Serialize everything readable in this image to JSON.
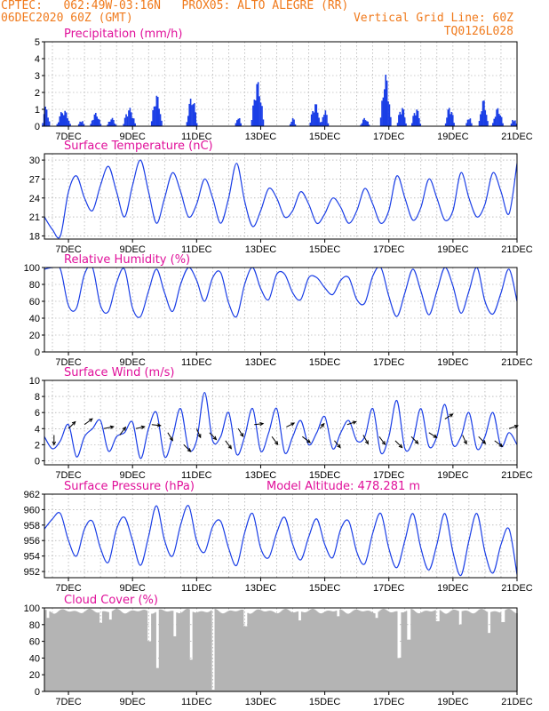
{
  "header": {
    "line1_left": "CPTEC:   062:49W-03:16N   PROX05: ALTO ALEGRE (RR)",
    "line2_left": "06DEC2020 60Z (GMT)",
    "line2_right": "Vertical Grid Line: 60Z",
    "line3_right": "TQ0126L028"
  },
  "colors": {
    "header": "#f07a1c",
    "title": "#e0109a",
    "series": "#1a3ee6",
    "cloud": "#b4b4b4",
    "wind_arrow": "#000000"
  },
  "x_tick_labels": [
    "7DEC",
    "9DEC",
    "11DEC",
    "13DEC",
    "15DEC",
    "17DEC",
    "19DEC",
    "21DEC"
  ],
  "chart_data": [
    {
      "type": "bar",
      "title": "Precipitation (mm/h)",
      "x_start_day": 6.25,
      "x_end_day": 21.0,
      "ylim": [
        0,
        5
      ],
      "yticks": [
        0,
        1,
        2,
        3,
        4,
        5
      ],
      "grid": true,
      "events": [
        {
          "day": 6.3,
          "width": 0.25,
          "peak": 1.2
        },
        {
          "day": 6.85,
          "width": 0.45,
          "peak": 1.0
        },
        {
          "day": 7.4,
          "width": 0.2,
          "peak": 0.4
        },
        {
          "day": 7.85,
          "width": 0.35,
          "peak": 0.8
        },
        {
          "day": 8.35,
          "width": 0.3,
          "peak": 0.5
        },
        {
          "day": 8.9,
          "width": 0.4,
          "peak": 1.1
        },
        {
          "day": 9.75,
          "width": 0.35,
          "peak": 1.9
        },
        {
          "day": 10.85,
          "width": 0.35,
          "peak": 1.8
        },
        {
          "day": 12.3,
          "width": 0.2,
          "peak": 0.6
        },
        {
          "day": 12.9,
          "width": 0.4,
          "peak": 2.7
        },
        {
          "day": 14.0,
          "width": 0.2,
          "peak": 0.5
        },
        {
          "day": 14.7,
          "width": 0.35,
          "peak": 1.4
        },
        {
          "day": 15.0,
          "width": 0.25,
          "peak": 1.0
        },
        {
          "day": 16.25,
          "width": 0.3,
          "peak": 0.5
        },
        {
          "day": 16.9,
          "width": 0.35,
          "peak": 3.1
        },
        {
          "day": 17.4,
          "width": 0.3,
          "peak": 1.2
        },
        {
          "day": 17.85,
          "width": 0.3,
          "peak": 1.1
        },
        {
          "day": 18.9,
          "width": 0.3,
          "peak": 1.2
        },
        {
          "day": 19.5,
          "width": 0.2,
          "peak": 0.6
        },
        {
          "day": 19.95,
          "width": 0.3,
          "peak": 1.6
        },
        {
          "day": 20.4,
          "width": 0.35,
          "peak": 1.1
        },
        {
          "day": 20.9,
          "width": 0.2,
          "peak": 0.5
        }
      ]
    },
    {
      "type": "line",
      "title": "Surface Temperature (nC)",
      "ylim": [
        17.5,
        31
      ],
      "yticks": [
        18,
        21,
        24,
        27,
        30
      ],
      "grid": true,
      "x": [
        6.25,
        6.5,
        6.75,
        7.0,
        7.25,
        7.5,
        7.75,
        8.0,
        8.25,
        8.5,
        8.75,
        9.0,
        9.25,
        9.5,
        9.75,
        10.0,
        10.25,
        10.5,
        10.75,
        11.0,
        11.25,
        11.5,
        11.75,
        12.0,
        12.25,
        12.5,
        12.75,
        13.0,
        13.25,
        13.5,
        13.75,
        14.0,
        14.25,
        14.5,
        14.75,
        15.0,
        15.25,
        15.5,
        15.75,
        16.0,
        16.25,
        16.5,
        16.75,
        17.0,
        17.25,
        17.5,
        17.75,
        18.0,
        18.25,
        18.5,
        18.75,
        19.0,
        19.25,
        19.5,
        19.75,
        20.0,
        20.25,
        20.5,
        20.75,
        21.0
      ],
      "y": [
        21,
        19,
        18,
        25,
        27.5,
        24,
        22,
        26,
        29,
        25,
        21,
        26,
        30,
        25,
        20,
        24,
        28,
        25,
        21,
        23,
        27,
        24,
        20,
        24,
        29.5,
        23.5,
        19.5,
        22,
        25.5,
        24,
        21,
        22,
        25,
        23,
        20,
        21.5,
        24,
        22.5,
        20,
        22,
        25.5,
        23,
        20,
        22,
        27.5,
        24,
        20.5,
        22.5,
        27,
        24,
        20.5,
        22,
        28,
        24,
        21,
        23,
        28,
        25,
        21.5,
        29.5
      ]
    },
    {
      "type": "line",
      "title": "Relative Humidity (%)",
      "ylim": [
        0,
        100
      ],
      "yticks": [
        0,
        20,
        40,
        60,
        80,
        100
      ],
      "grid": true,
      "x": [
        6.25,
        6.5,
        6.75,
        7.0,
        7.25,
        7.5,
        7.75,
        8.0,
        8.25,
        8.5,
        8.75,
        9.0,
        9.25,
        9.5,
        9.75,
        10.0,
        10.25,
        10.5,
        10.75,
        11.0,
        11.25,
        11.5,
        11.75,
        12.0,
        12.25,
        12.5,
        12.75,
        13.0,
        13.25,
        13.5,
        13.75,
        14.0,
        14.25,
        14.5,
        14.75,
        15.0,
        15.25,
        15.5,
        15.75,
        16.0,
        16.25,
        16.5,
        16.75,
        17.0,
        17.25,
        17.5,
        17.75,
        18.0,
        18.25,
        18.5,
        18.75,
        19.0,
        19.25,
        19.5,
        19.75,
        20.0,
        20.25,
        20.5,
        20.75,
        21.0
      ],
      "y": [
        98,
        100,
        98,
        55,
        52,
        92,
        100,
        55,
        48,
        82,
        98,
        52,
        42,
        72,
        98,
        70,
        48,
        80,
        100,
        85,
        60,
        88,
        94,
        58,
        42,
        80,
        100,
        75,
        62,
        92,
        92,
        70,
        62,
        88,
        88,
        76,
        68,
        85,
        88,
        62,
        58,
        90,
        100,
        66,
        42,
        70,
        98,
        72,
        44,
        72,
        100,
        78,
        46,
        72,
        100,
        60,
        45,
        70,
        98,
        60
      ]
    },
    {
      "type": "line",
      "title": "Surface Wind (m/s)",
      "ylim": [
        -0.5,
        10
      ],
      "yticks": [
        0,
        2,
        4,
        6,
        8,
        10
      ],
      "grid": true,
      "x": [
        6.25,
        6.5,
        6.75,
        7.0,
        7.25,
        7.5,
        7.75,
        8.0,
        8.25,
        8.5,
        8.75,
        9.0,
        9.25,
        9.5,
        9.75,
        10.0,
        10.25,
        10.5,
        10.75,
        11.0,
        11.25,
        11.5,
        11.75,
        12.0,
        12.25,
        12.5,
        12.75,
        13.0,
        13.25,
        13.5,
        13.75,
        14.0,
        14.25,
        14.5,
        14.75,
        15.0,
        15.25,
        15.5,
        15.75,
        16.0,
        16.25,
        16.5,
        16.75,
        17.0,
        17.25,
        17.5,
        17.75,
        18.0,
        18.25,
        18.5,
        18.75,
        19.0,
        19.25,
        19.5,
        19.75,
        20.0,
        20.25,
        20.5,
        20.75,
        21.0
      ],
      "y": [
        3,
        1.5,
        2.5,
        4.5,
        0.5,
        3,
        4,
        5,
        1.2,
        3,
        3.5,
        4.8,
        0.3,
        4,
        6,
        0.5,
        3,
        6.5,
        1.5,
        2.5,
        8.5,
        2.5,
        3,
        6,
        0.8,
        3,
        6.5,
        1.2,
        3.5,
        6.5,
        1,
        3,
        5,
        2,
        3.5,
        5.5,
        1.5,
        3.5,
        5,
        2.5,
        3,
        6.5,
        1,
        3,
        7.5,
        1.5,
        2.5,
        6.5,
        1.8,
        3,
        7,
        2,
        3,
        6,
        1.5,
        3,
        6,
        1.8,
        3.5,
        2
      ],
      "arrows": [
        {
          "day": 6.55,
          "speed": 3.2,
          "u": 0.0,
          "v": -1.0
        },
        {
          "day": 7.0,
          "speed": 4.0,
          "u": 0.7,
          "v": 0.7
        },
        {
          "day": 7.5,
          "speed": 4.5,
          "u": 0.8,
          "v": 0.6
        },
        {
          "day": 8.1,
          "speed": 4.0,
          "u": 1.0,
          "v": 0.2
        },
        {
          "day": 8.6,
          "speed": 3.2,
          "u": 0.6,
          "v": 0.8
        },
        {
          "day": 9.1,
          "speed": 4.0,
          "u": 0.9,
          "v": 0.2
        },
        {
          "day": 9.6,
          "speed": 4.5,
          "u": 0.9,
          "v": -0.1
        },
        {
          "day": 10.1,
          "speed": 3.5,
          "u": 0.5,
          "v": -0.8
        },
        {
          "day": 10.6,
          "speed": 2.0,
          "u": 0.7,
          "v": -0.7
        },
        {
          "day": 11.0,
          "speed": 4.0,
          "u": 0.4,
          "v": -0.9
        },
        {
          "day": 11.4,
          "speed": 3.5,
          "u": 0.7,
          "v": -0.7
        },
        {
          "day": 11.9,
          "speed": 2.5,
          "u": 0.6,
          "v": -0.8
        },
        {
          "day": 12.3,
          "speed": 4.0,
          "u": 0.5,
          "v": -0.8
        },
        {
          "day": 12.8,
          "speed": 4.5,
          "u": 0.9,
          "v": 0.1
        },
        {
          "day": 13.35,
          "speed": 3.0,
          "u": 0.6,
          "v": -0.8
        },
        {
          "day": 13.8,
          "speed": 4.2,
          "u": 0.8,
          "v": 0.4
        },
        {
          "day": 14.3,
          "speed": 3.0,
          "u": 0.8,
          "v": -0.6
        },
        {
          "day": 14.85,
          "speed": 4.0,
          "u": 0.4,
          "v": 0.5
        },
        {
          "day": 15.3,
          "speed": 2.5,
          "u": 0.6,
          "v": -0.7
        },
        {
          "day": 15.7,
          "speed": 4.5,
          "u": 0.9,
          "v": 0.3
        },
        {
          "day": 16.2,
          "speed": 3.2,
          "u": 0.5,
          "v": -0.9
        },
        {
          "day": 16.7,
          "speed": 3.0,
          "u": 0.6,
          "v": -0.8
        },
        {
          "day": 17.2,
          "speed": 2.5,
          "u": 0.7,
          "v": -0.7
        },
        {
          "day": 17.7,
          "speed": 3.0,
          "u": 0.7,
          "v": -0.7
        },
        {
          "day": 18.25,
          "speed": 3.5,
          "u": 0.8,
          "v": -0.5
        },
        {
          "day": 18.75,
          "speed": 5.2,
          "u": 0.8,
          "v": 0.5
        },
        {
          "day": 19.3,
          "speed": 3.2,
          "u": 0.4,
          "v": -0.9
        },
        {
          "day": 19.8,
          "speed": 3.0,
          "u": 0.7,
          "v": -0.7
        },
        {
          "day": 20.3,
          "speed": 2.5,
          "u": 0.8,
          "v": -0.6
        },
        {
          "day": 20.75,
          "speed": 4.0,
          "u": 0.9,
          "v": 0.3
        }
      ]
    },
    {
      "type": "line",
      "title": "Surface Pressure (hPa)",
      "annotation": "Model Altitude: 478.281 m",
      "ylim": [
        951.2,
        962
      ],
      "yticks": [
        952,
        954,
        956,
        958,
        960,
        962
      ],
      "grid": true,
      "x": [
        6.25,
        6.5,
        6.75,
        7.0,
        7.25,
        7.5,
        7.75,
        8.0,
        8.25,
        8.5,
        8.75,
        9.0,
        9.25,
        9.5,
        9.75,
        10.0,
        10.25,
        10.5,
        10.75,
        11.0,
        11.25,
        11.5,
        11.75,
        12.0,
        12.25,
        12.5,
        12.75,
        13.0,
        13.25,
        13.5,
        13.75,
        14.0,
        14.25,
        14.5,
        14.75,
        15.0,
        15.25,
        15.5,
        15.75,
        16.0,
        16.25,
        16.5,
        16.75,
        17.0,
        17.25,
        17.5,
        17.75,
        18.0,
        18.25,
        18.5,
        18.75,
        19.0,
        19.25,
        19.5,
        19.75,
        20.0,
        20.25,
        20.5,
        20.75,
        21.0
      ],
      "y": [
        957.5,
        958.8,
        959.5,
        956,
        954,
        957.5,
        958.5,
        955,
        953.2,
        957.5,
        959,
        956,
        952.8,
        956.5,
        960.5,
        956,
        954,
        958,
        960.5,
        956,
        954.5,
        957.8,
        958.5,
        955,
        952.8,
        957,
        959.5,
        955,
        953.8,
        957,
        959,
        955.5,
        953.5,
        956.5,
        958.8,
        955.5,
        953.8,
        957.5,
        958.5,
        954.5,
        953,
        957,
        959.5,
        955,
        952.5,
        956,
        959.5,
        955,
        952.2,
        955.5,
        959.5,
        954.5,
        951.5,
        956,
        959.5,
        954.5,
        951.8,
        955.5,
        957.5,
        951.6
      ]
    },
    {
      "type": "bar",
      "title": "Cloud Cover (%)",
      "ylim": [
        0,
        100
      ],
      "yticks": [
        0,
        20,
        40,
        60,
        80,
        100
      ],
      "grid": true,
      "base": 96,
      "dips": [
        {
          "day": 6.35,
          "value": 88
        },
        {
          "day": 8.0,
          "value": 82
        },
        {
          "day": 8.3,
          "value": 86
        },
        {
          "day": 9.5,
          "value": 60
        },
        {
          "day": 9.75,
          "value": 28
        },
        {
          "day": 10.3,
          "value": 66
        },
        {
          "day": 10.8,
          "value": 38
        },
        {
          "day": 11.5,
          "value": 2
        },
        {
          "day": 12.5,
          "value": 78
        },
        {
          "day": 14.2,
          "value": 85
        },
        {
          "day": 15.4,
          "value": 90
        },
        {
          "day": 16.6,
          "value": 88
        },
        {
          "day": 17.3,
          "value": 40
        },
        {
          "day": 17.6,
          "value": 62
        },
        {
          "day": 18.5,
          "value": 84
        },
        {
          "day": 19.2,
          "value": 80
        },
        {
          "day": 20.1,
          "value": 70
        },
        {
          "day": 20.55,
          "value": 83
        }
      ]
    }
  ]
}
